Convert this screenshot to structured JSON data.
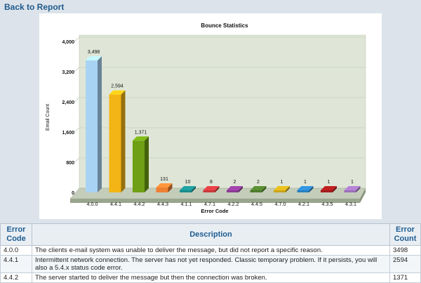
{
  "nav": {
    "back_label": "Back to Report"
  },
  "chart_data": {
    "type": "bar",
    "title": "Bounce Statistics",
    "xlabel": "Error Code",
    "ylabel": "Email Count",
    "ylim": [
      0,
      4000
    ],
    "yticks": [
      "0",
      "800",
      "1,600",
      "2,400",
      "3,200",
      "4,000"
    ],
    "categories": [
      "4.0.0",
      "4.4.1",
      "4.4.2",
      "4.4.3",
      "4.1.1",
      "4.7.1",
      "4.2.2",
      "4.4.5",
      "4.7.0",
      "4.2.1",
      "4.3.5",
      "4.3.1"
    ],
    "values": [
      3498,
      2594,
      1371,
      131,
      10,
      8,
      2,
      2,
      1,
      1,
      1,
      1
    ],
    "value_labels": [
      "3,498",
      "2,594",
      "1,371",
      "131",
      "10",
      "8",
      "2",
      "2",
      "1",
      "1",
      "1",
      "1"
    ],
    "colors": [
      "#a9d3f3",
      "#f3b515",
      "#6e9f14",
      "#ee8033",
      "#1b8b8b",
      "#c8383c",
      "#8a3a94",
      "#4e7a2c",
      "#c9a418",
      "#2a7fc0",
      "#a31b1b",
      "#9b6fb8"
    ],
    "grid": true,
    "legend": "none"
  },
  "table": {
    "headers": {
      "code": "Error Code",
      "description": "Description",
      "count": "Error Count"
    },
    "rows": [
      {
        "code": "4.0.0",
        "description": "The clients e-mail system was unable to deliver the message, but did not report a specific reason.",
        "count": "3498"
      },
      {
        "code": "4.4.1",
        "description": "Intermittent network connection. The server has not yet responded. Classic temporary problem. If it persists, you will also a 5.4.x status code error.",
        "count": "2594"
      },
      {
        "code": "4.4.2",
        "description": "The server started to deliver the message but then the connection was broken.",
        "count": "1371"
      }
    ]
  }
}
